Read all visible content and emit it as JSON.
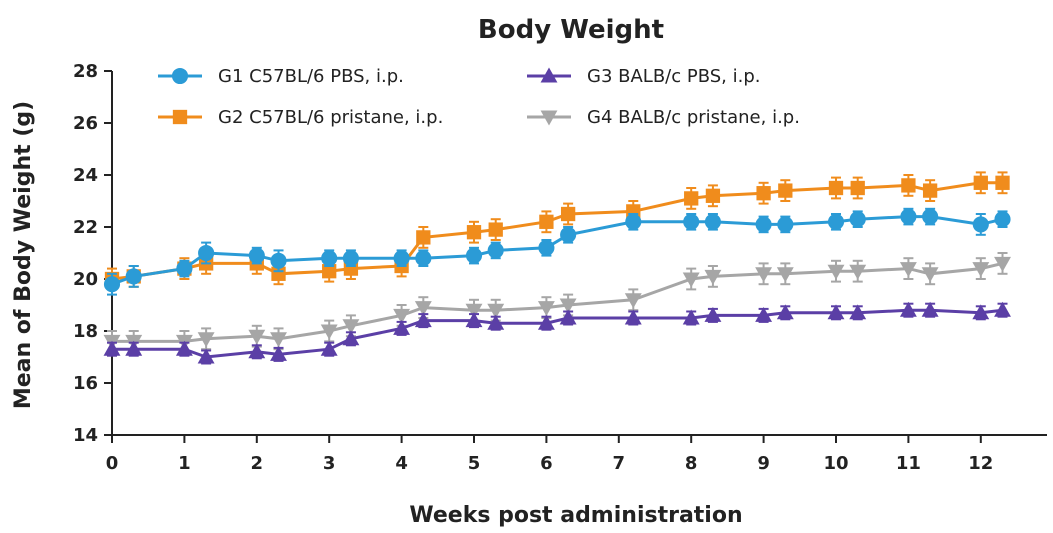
{
  "chart_data": {
    "type": "line",
    "title": "Body Weight",
    "xlabel": "Weeks post administration",
    "ylabel": "Mean of Body Weight (g)",
    "xlim": [
      0,
      12.5
    ],
    "ylim": [
      14,
      28
    ],
    "xticks": [
      0,
      1,
      2,
      3,
      4,
      5,
      6,
      7,
      8,
      9,
      10,
      11,
      12
    ],
    "yticks": [
      14,
      16,
      18,
      20,
      22,
      24,
      26,
      28
    ],
    "grid": false,
    "legend_position": "top",
    "series": [
      {
        "name": "G1 C57BL/6 PBS, i.p.",
        "color": "#2b9bd6",
        "marker": "circle",
        "x": [
          0,
          0.3,
          1,
          1.3,
          2,
          2.3,
          3,
          3.3,
          4,
          4.3,
          5,
          5.3,
          6,
          6.3,
          7.2,
          8,
          8.3,
          9,
          9.3,
          10,
          10.3,
          11,
          11.3,
          12,
          12.3
        ],
        "y": [
          19.8,
          20.1,
          20.4,
          21.0,
          20.9,
          20.7,
          20.8,
          20.8,
          20.8,
          20.8,
          20.9,
          21.1,
          21.2,
          21.7,
          22.2,
          22.2,
          22.2,
          22.1,
          22.1,
          22.2,
          22.3,
          22.4,
          22.4,
          22.1,
          22.3
        ],
        "err": [
          0.4,
          0.4,
          0.3,
          0.4,
          0.3,
          0.4,
          0.3,
          0.3,
          0.3,
          0.3,
          0.3,
          0.3,
          0.3,
          0.3,
          0.3,
          0.3,
          0.3,
          0.3,
          0.3,
          0.3,
          0.3,
          0.3,
          0.3,
          0.4,
          0.3
        ]
      },
      {
        "name": "G2 C57BL/6 pristane, i.p.",
        "color": "#f08c1c",
        "marker": "square",
        "x": [
          0,
          0.3,
          1,
          1.3,
          2,
          2.3,
          3,
          3.3,
          4,
          4.3,
          5,
          5.3,
          6,
          6.3,
          7.2,
          8,
          8.3,
          9,
          9.3,
          10,
          10.3,
          11,
          11.3,
          12,
          12.3
        ],
        "y": [
          20.0,
          20.1,
          20.4,
          20.6,
          20.6,
          20.2,
          20.3,
          20.4,
          20.5,
          21.6,
          21.8,
          21.9,
          22.2,
          22.5,
          22.6,
          23.1,
          23.2,
          23.3,
          23.4,
          23.5,
          23.5,
          23.6,
          23.4,
          23.7,
          23.7
        ]
      },
      {
        "name": "G3 BALB/c PBS, i.p.",
        "color": "#5b3fa6",
        "marker": "triangle-up",
        "x": [
          0,
          0.3,
          1,
          1.3,
          2,
          2.3,
          3,
          3.3,
          4,
          4.3,
          5,
          5.3,
          6,
          6.3,
          7.2,
          8,
          8.3,
          9,
          9.3,
          10,
          10.3,
          11,
          11.3,
          12,
          12.3
        ],
        "y": [
          17.3,
          17.3,
          17.3,
          17.0,
          17.2,
          17.1,
          17.3,
          17.7,
          18.1,
          18.4,
          18.4,
          18.3,
          18.3,
          18.5,
          18.5,
          18.5,
          18.6,
          18.6,
          18.7,
          18.7,
          18.7,
          18.8,
          18.8,
          18.7,
          18.8
        ]
      },
      {
        "name": "G4 BALB/c pristane, i.p.",
        "color": "#a6a6a6",
        "marker": "triangle-down",
        "x": [
          0,
          0.3,
          1,
          1.3,
          2,
          2.3,
          3,
          3.3,
          4,
          4.3,
          5,
          5.3,
          6,
          6.3,
          7.2,
          8,
          8.3,
          9,
          9.3,
          10,
          10.3,
          11,
          11.3,
          12,
          12.3
        ],
        "y": [
          17.6,
          17.6,
          17.6,
          17.7,
          17.8,
          17.7,
          18.0,
          18.2,
          18.6,
          18.9,
          18.8,
          18.8,
          18.9,
          19.0,
          19.2,
          20.0,
          20.1,
          20.2,
          20.2,
          20.3,
          20.3,
          20.4,
          20.2,
          20.4,
          20.6
        ]
      }
    ]
  }
}
